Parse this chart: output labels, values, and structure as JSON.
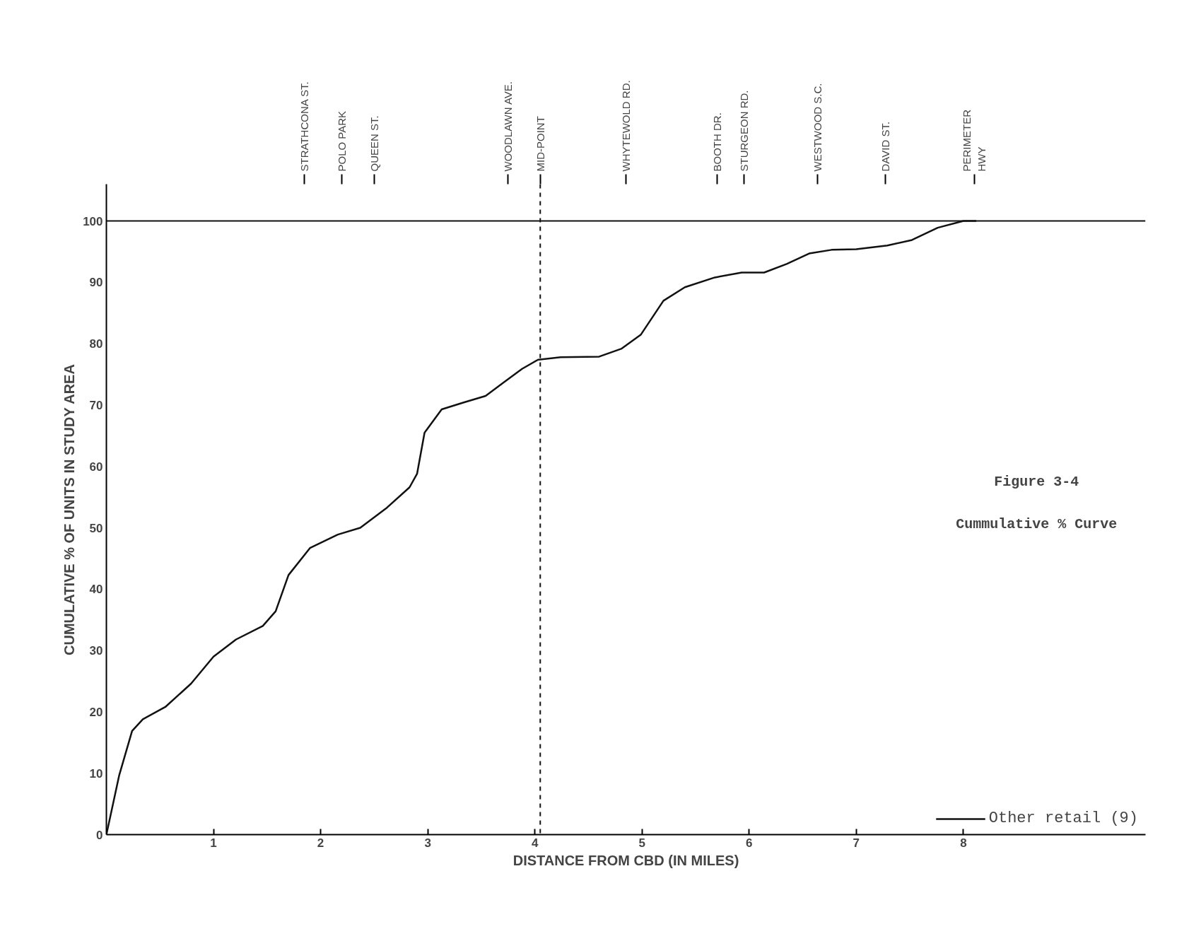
{
  "chart_data": {
    "type": "line",
    "xlabel": "DISTANCE FROM CBD (IN MILES)",
    "ylabel": "CUMULATIVE % OF UNITS IN STUDY AREA",
    "annotations": [
      "Figure 3-4",
      "Cummulative % Curve"
    ],
    "xlim": [
      0,
      9.7
    ],
    "ylim": [
      0,
      106
    ],
    "xticks": [
      1,
      2,
      3,
      4,
      5,
      6,
      7,
      8
    ],
    "yticks": [
      0,
      10,
      20,
      30,
      40,
      50,
      60,
      70,
      80,
      90,
      100
    ],
    "grid": false,
    "legend": "bottom right",
    "marker": "none",
    "line_style": "solid",
    "series": [
      {
        "name": "Other retail (9)",
        "color": "#111111",
        "x": [
          0,
          0.12,
          0.24,
          0.34,
          0.55,
          0.79,
          1.0,
          1.21,
          1.46,
          1.58,
          1.7,
          1.9,
          2.16,
          2.37,
          2.62,
          2.83,
          2.9,
          2.97,
          3.13,
          3.33,
          3.54,
          3.71,
          3.88,
          4.03,
          4.24,
          4.6,
          4.81,
          4.99,
          5.2,
          5.4,
          5.68,
          5.93,
          6.14,
          6.35,
          6.56,
          6.77,
          7.0,
          7.29,
          7.52,
          7.76,
          8.0,
          8.12
        ],
        "values": [
          0,
          9.7,
          16.9,
          18.8,
          20.8,
          24.6,
          29,
          31.8,
          34,
          36.4,
          42.3,
          46.7,
          48.9,
          50,
          53.3,
          56.6,
          58.8,
          65.5,
          69.3,
          70.4,
          71.5,
          73.7,
          75.9,
          77.4,
          77.8,
          77.9,
          79.2,
          81.5,
          87,
          89.2,
          90.8,
          91.6,
          91.6,
          93,
          94.7,
          95.3,
          95.4,
          96,
          96.9,
          98.9,
          100,
          100
        ]
      }
    ],
    "ref_lines": [
      {
        "axis": "y",
        "value": 100,
        "label": null,
        "line_style": "solid"
      },
      {
        "axis": "x",
        "value": 1.85,
        "label": "STRATHCONA ST."
      },
      {
        "axis": "x",
        "value": 2.2,
        "label": "POLO PARK"
      },
      {
        "axis": "x",
        "value": 2.5,
        "label": "QUEEN ST."
      },
      {
        "axis": "x",
        "value": 3.75,
        "label": "WOODLAWN AVE."
      },
      {
        "axis": "x",
        "value": 4.05,
        "label": "MID-POINT",
        "line_style": "dashed"
      },
      {
        "axis": "x",
        "value": 4.85,
        "label": "WHYTEWOLD RD."
      },
      {
        "axis": "x",
        "value": 5.7,
        "label": "BOOTH DR."
      },
      {
        "axis": "x",
        "value": 5.95,
        "label": "STURGEON RD."
      },
      {
        "axis": "x",
        "value": 6.64,
        "label": "WESTWOOD S.C."
      },
      {
        "axis": "x",
        "value": 7.27,
        "label": "DAVID ST."
      },
      {
        "axis": "x",
        "value": 8.1,
        "label": "PERIMETER\nHWY"
      }
    ]
  }
}
